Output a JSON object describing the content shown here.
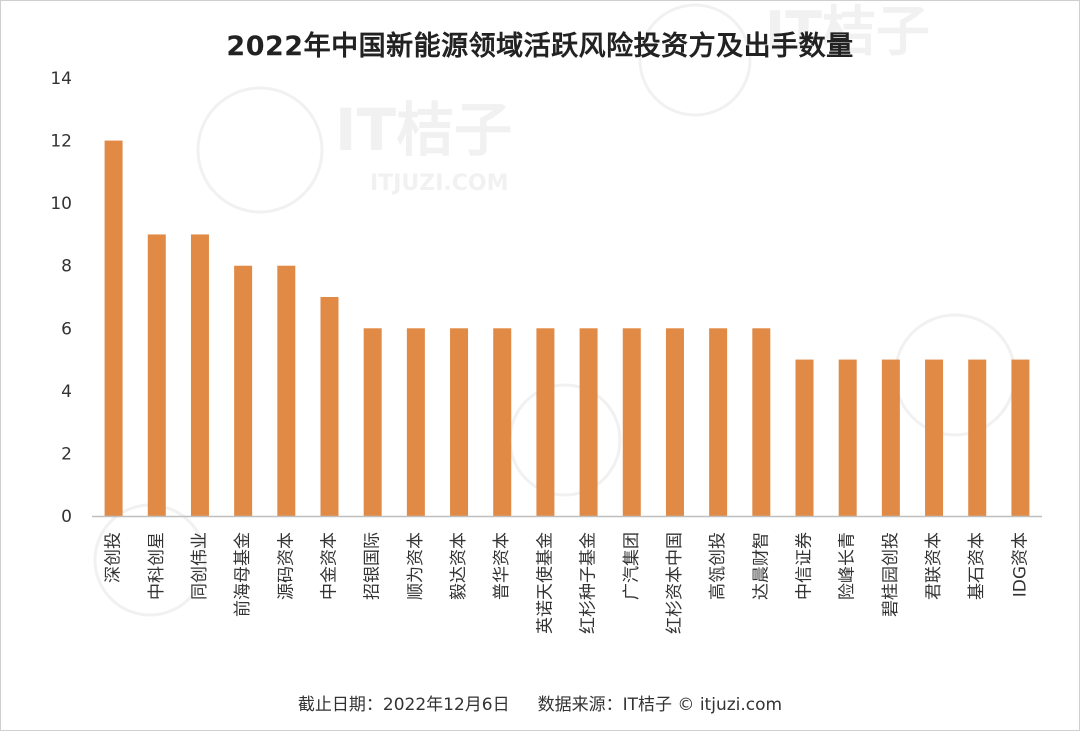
{
  "title": "2022年中国新能源领域活跃风险投资方及出手数量",
  "footer": {
    "date": "截止日期：2022年12月6日",
    "source": "数据来源：IT桔子 © itjuzi.com"
  },
  "colors": {
    "bar": "#E08A46",
    "axis": "#bfbfbf",
    "text": "#333333"
  },
  "chart_data": {
    "type": "bar",
    "title": "2022年中国新能源领域活跃风险投资方及出手数量",
    "xlabel": "",
    "ylabel": "",
    "ylim": [
      0,
      14
    ],
    "yticks": [
      0,
      2,
      4,
      6,
      8,
      10,
      12,
      14
    ],
    "grid": false,
    "legend": "none",
    "categories": [
      "深创投",
      "中科创星",
      "同创伟业",
      "前海母基金",
      "源码资本",
      "中金资本",
      "招银国际",
      "顺为资本",
      "毅达资本",
      "普华资本",
      "英诺天使基金",
      "红杉种子基金",
      "广汽集团",
      "红杉资本中国",
      "高瓴创投",
      "达晨财智",
      "中信证券",
      "险峰长青",
      "碧桂园创投",
      "君联资本",
      "基石资本",
      "IDG资本"
    ],
    "values": [
      12,
      9,
      9,
      8,
      8,
      7,
      6,
      6,
      6,
      6,
      6,
      6,
      6,
      6,
      6,
      6,
      5,
      5,
      5,
      5,
      5,
      5
    ]
  }
}
